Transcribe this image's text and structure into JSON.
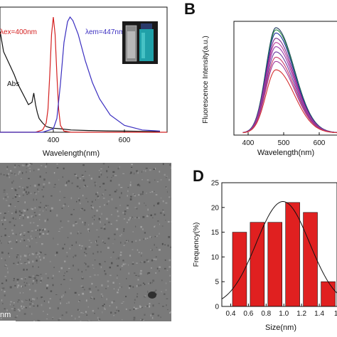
{
  "panelA": {
    "excitation_label": "λex=400nm",
    "emission_label": "λem=447nm",
    "abs_label": "Abs",
    "xlabel": "Wavelength(nm)",
    "xticks": [
      "400",
      "600"
    ],
    "colors": {
      "abs": "#111111",
      "ex": "#d42020",
      "em": "#3a2ec0"
    }
  },
  "panelB": {
    "letter": "B",
    "ylabel": "Fluorescence Intensity(a.u.)",
    "xlabel": "Wavelength(nm)",
    "xticks": [
      "400",
      "500",
      "600"
    ]
  },
  "panelC": {
    "scale_label": "nm"
  },
  "panelD": {
    "letter": "D",
    "ylabel": "Frequency(%)",
    "xlabel": "Size(nm)",
    "yticks": [
      "0",
      "5",
      "10",
      "15",
      "20",
      "25"
    ],
    "xticks": [
      "0.4",
      "0.6",
      "0.8",
      "1.0",
      "1.2",
      "1.4",
      "1."
    ]
  },
  "chart_data": [
    {
      "id": "A",
      "type": "line",
      "xlabel": "Wavelength(nm)",
      "xlim": [
        250,
        720
      ],
      "series": [
        {
          "name": "Abs",
          "x": [
            250,
            260,
            275,
            290,
            300,
            310,
            320,
            330,
            340,
            345,
            350,
            355,
            360,
            370,
            380,
            390,
            400,
            420,
            450,
            500,
            550,
            600,
            650,
            700
          ],
          "y": [
            0.88,
            0.7,
            0.6,
            0.5,
            0.42,
            0.36,
            0.3,
            0.24,
            0.26,
            0.34,
            0.24,
            0.17,
            0.12,
            0.08,
            0.05,
            0.04,
            0.035,
            0.03,
            0.02,
            0.015,
            0.012,
            0.01,
            0.008,
            0.006
          ]
        },
        {
          "name": "λex=400nm",
          "x": [
            250,
            350,
            370,
            380,
            385,
            390,
            395,
            400,
            405,
            410,
            415,
            420,
            430,
            450,
            720
          ],
          "y": [
            0.0,
            0.0,
            0.02,
            0.08,
            0.2,
            0.5,
            0.85,
            1.0,
            0.85,
            0.5,
            0.2,
            0.06,
            0.01,
            0.0,
            0.0
          ]
        },
        {
          "name": "λem=447nm",
          "x": [
            250,
            370,
            400,
            410,
            420,
            430,
            440,
            447,
            455,
            470,
            490,
            510,
            530,
            560,
            600,
            650,
            700
          ],
          "y": [
            0.0,
            0.0,
            0.03,
            0.12,
            0.42,
            0.78,
            0.96,
            1.0,
            0.97,
            0.85,
            0.62,
            0.43,
            0.29,
            0.15,
            0.06,
            0.02,
            0.01
          ]
        }
      ]
    },
    {
      "id": "B",
      "type": "line",
      "xlabel": "Wavelength(nm)",
      "ylabel": "Fluorescence Intensity(a.u.)",
      "xlim": [
        360,
        660
      ],
      "peak_x": 478,
      "series": [
        {
          "color": "#1c3a5c",
          "peak": 1.0
        },
        {
          "color": "#2a8a44",
          "peak": 0.98
        },
        {
          "color": "#1a2a9a",
          "peak": 0.95
        },
        {
          "color": "#7a2a8a",
          "peak": 0.9
        },
        {
          "color": "#b83a9a",
          "peak": 0.86
        },
        {
          "color": "#9a3aa8",
          "peak": 0.82
        },
        {
          "color": "#6a3aa0",
          "peak": 0.77
        },
        {
          "color": "#c83a6a",
          "peak": 0.72
        },
        {
          "color": "#a03a9a",
          "peak": 0.68
        },
        {
          "color": "#d43030",
          "peak": 0.6
        }
      ]
    },
    {
      "id": "D",
      "type": "bar",
      "xlabel": "Size(nm)",
      "ylabel": "Frequency(%)",
      "xlim": [
        0.3,
        1.6
      ],
      "ylim": [
        0,
        25
      ],
      "categories": [
        "0.5",
        "0.7",
        "0.9",
        "1.1",
        "1.3",
        "1.5"
      ],
      "values": [
        15,
        17,
        17,
        21,
        19,
        5
      ],
      "bar_color": "#e02020",
      "fit": {
        "type": "gaussian",
        "mean": 0.99,
        "sigma": 0.3,
        "peak": 21.2
      }
    }
  ]
}
